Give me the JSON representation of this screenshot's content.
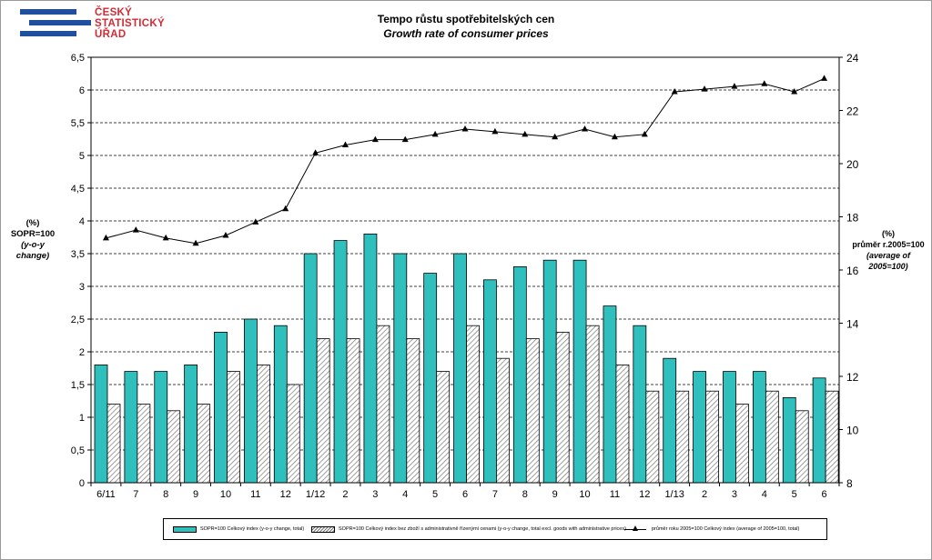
{
  "logo": {
    "line1": "ČESKÝ",
    "line2": "STATISTICKÝ",
    "line3": "ÚŘAD",
    "bar_color": "#1f4f9e",
    "text_color": "#d42a33"
  },
  "left_axis_title": {
    "line1": "(%)",
    "line2": "SOPR=100",
    "line3": "(y-o-y change)"
  },
  "right_axis_title": {
    "line1": "(%)",
    "line2": "průměr r.2005=100",
    "line3": "(average of 2005=100)"
  },
  "legend": {
    "item1": "SOPR=100 Celkový index (y-o-y change, total)",
    "item2": "SOPR=100 Celkový index bez zboží s administrativně řízenými cenami (y-o-y change, total excl. goods with administrative prices)",
    "item3": "průměr roku 2005=100 Celkový index (average of 2005=100, total)"
  },
  "colors": {
    "series1": "#2fc0bd",
    "series2_hatch": "#777777",
    "line": "#000000"
  },
  "chart_data": {
    "type": "bar",
    "title": "Tempo růstu spotřebitelských cen",
    "subtitle": "Growth rate of consumer prices",
    "categories": [
      "6/11",
      "7",
      "8",
      "9",
      "10",
      "11",
      "12",
      "1/12",
      "2",
      "3",
      "4",
      "5",
      "6",
      "7",
      "8",
      "9",
      "10",
      "11",
      "12",
      "1/13",
      "2",
      "3",
      "4",
      "5",
      "6"
    ],
    "series": [
      {
        "name": "SOPR=100 Celkový index (y-o-y change, total)",
        "type": "bar",
        "axis": "left",
        "values": [
          1.8,
          1.7,
          1.7,
          1.8,
          2.3,
          2.5,
          2.4,
          3.5,
          3.7,
          3.8,
          3.5,
          3.2,
          3.5,
          3.1,
          3.3,
          3.4,
          3.4,
          2.7,
          2.4,
          1.9,
          1.7,
          1.7,
          1.7,
          1.3,
          1.6
        ]
      },
      {
        "name": "SOPR=100 Celkový index bez zboží s administrativně řízenými cenami (y-o-y change, total excl. goods with administrative prices)",
        "type": "bar",
        "axis": "left",
        "values": [
          1.2,
          1.2,
          1.1,
          1.2,
          1.7,
          1.8,
          1.5,
          2.2,
          2.2,
          2.4,
          2.2,
          1.7,
          2.4,
          1.9,
          2.2,
          2.3,
          2.4,
          1.8,
          1.4,
          1.4,
          1.4,
          1.2,
          1.4,
          1.1,
          1.4
        ]
      },
      {
        "name": "průměr roku 2005=100 Celkový index (average of 2005=100, total)",
        "type": "line",
        "axis": "right",
        "values": [
          17.2,
          17.5,
          17.2,
          17.0,
          17.3,
          17.8,
          18.3,
          20.4,
          20.7,
          20.9,
          20.9,
          21.1,
          21.3,
          21.2,
          21.1,
          21.0,
          21.3,
          21.0,
          21.1,
          22.7,
          22.8,
          22.9,
          23.0,
          22.7,
          23.2
        ]
      }
    ],
    "y_left": {
      "min": 0,
      "max": 6.5,
      "step": 0.5,
      "ticks": [
        "0",
        "0,5",
        "1",
        "1,5",
        "2",
        "2,5",
        "3",
        "3,5",
        "4",
        "4,5",
        "5",
        "5,5",
        "6",
        "6,5"
      ]
    },
    "y_right": {
      "min": 8,
      "max": 24,
      "step": 2,
      "ticks": [
        "8",
        "10",
        "12",
        "14",
        "16",
        "18",
        "20",
        "22",
        "24"
      ]
    },
    "grid": "horizontal-dashed",
    "legend_position": "bottom"
  }
}
